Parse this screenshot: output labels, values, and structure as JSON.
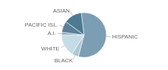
{
  "chart_data": {
    "type": "pie",
    "categories": [
      "HISPANIC",
      "BLACK",
      "WHITE",
      "A.I.",
      "PACIFIC ISL.",
      "ASIAN"
    ],
    "values": [
      56,
      5,
      16,
      2,
      8,
      13
    ],
    "colors": [
      "#7b9eb5",
      "#aec8d5",
      "#c5dce6",
      "#8aafc3",
      "#5b7f96",
      "#4d7a92"
    ]
  }
}
